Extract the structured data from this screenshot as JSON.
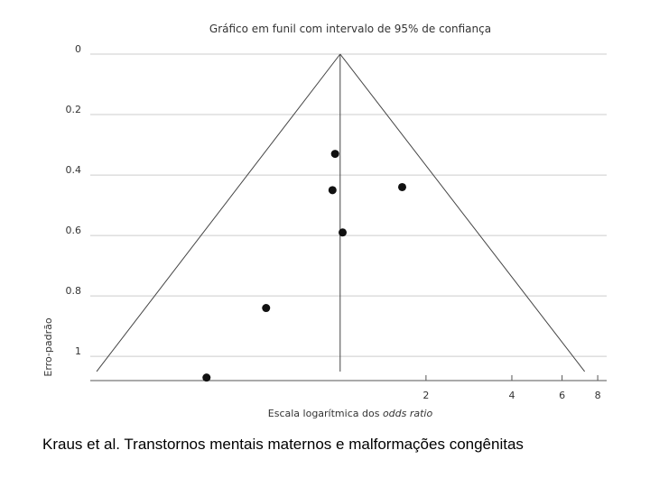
{
  "chart_data": {
    "type": "scatter",
    "subtype": "funnel-plot",
    "title": "Gráfico em funil com intervalo de 95% de confiança",
    "xlabel_prefix": "Escala logarítmica dos ",
    "xlabel_italic": "odds ratio",
    "ylabel": "Erro-padrão",
    "x_scale": "log",
    "y_inverted": true,
    "xlim": [
      0.133,
      8.6
    ],
    "ylim": [
      0,
      1.08
    ],
    "x_ticks": [
      2,
      4,
      6,
      8
    ],
    "x_tick_labels": [
      "2",
      "4",
      "6",
      "8"
    ],
    "y_ticks": [
      0,
      0.2,
      0.4,
      0.6,
      0.8,
      1
    ],
    "y_tick_labels": [
      "0",
      "0.2",
      "0.4",
      "0.6",
      "0.8",
      "1"
    ],
    "grid": "horizontal",
    "center_or": 1.0,
    "funnel": {
      "base_se": 1.05,
      "left_or": 0.14,
      "right_or": 7.2
    },
    "points": [
      {
        "x": 0.96,
        "y": 0.33
      },
      {
        "x": 0.94,
        "y": 0.45
      },
      {
        "x": 1.65,
        "y": 0.44
      },
      {
        "x": 1.02,
        "y": 0.59
      },
      {
        "x": 0.55,
        "y": 0.84
      },
      {
        "x": 0.34,
        "y": 1.07
      }
    ],
    "colors": {
      "axis": "#555555",
      "grid": "#cccccc",
      "marker": "#111111",
      "funnel": "#444444"
    }
  },
  "caption": "Kraus et al. Transtornos mentais maternos e malformações congênitas"
}
